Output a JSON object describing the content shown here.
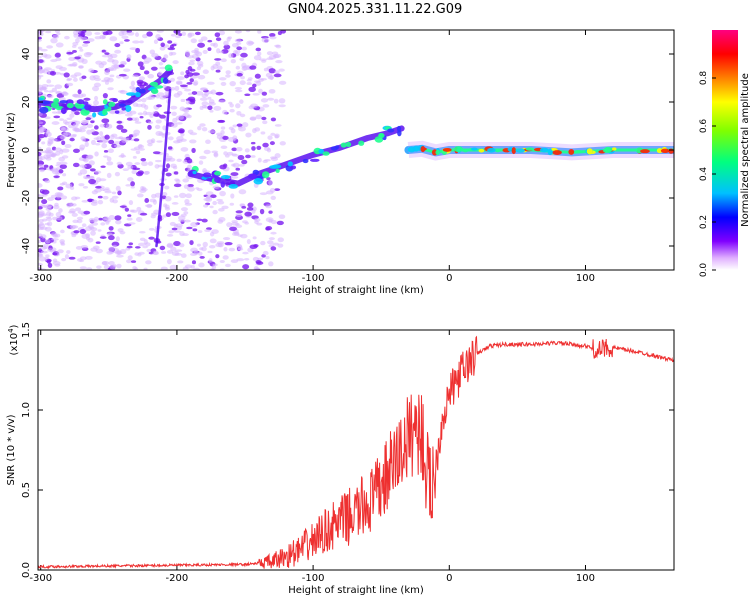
{
  "title": "GN04.2025.331.11.22.G09",
  "chart_data": [
    {
      "type": "heatmap",
      "xlabel": "Height of straight line (km)",
      "ylabel": "Frequency (Hz)",
      "xlim": [
        -302,
        165
      ],
      "ylim": [
        -50,
        50
      ],
      "x_ticks": [
        -300,
        -200,
        -100,
        0,
        100
      ],
      "y_ticks": [
        -40,
        -20,
        0,
        20,
        40
      ],
      "colorbar": {
        "label": "Normalized spectral amplitude",
        "range": [
          0,
          1
        ],
        "ticks": [
          "0.0",
          "0.2",
          "0.4",
          "0.6",
          "0.8"
        ],
        "colors": [
          "#ffffff",
          "#e0b0ff",
          "#8000ff",
          "#0000ff",
          "#00c0ff",
          "#00ff80",
          "#80ff00",
          "#ffff00",
          "#ff8000",
          "#ff0000",
          "#ff0080"
        ]
      },
      "tracks": [
        {
          "x": [
            -302,
            -280,
            -260,
            -245,
            -235,
            -225,
            -212,
            -205
          ],
          "y": [
            20,
            18,
            17,
            18,
            20,
            24,
            29,
            33
          ]
        },
        {
          "x": [
            -215,
            -210,
            -205
          ],
          "y": [
            -40,
            -10,
            25
          ]
        },
        {
          "x": [
            -190,
            -175,
            -155,
            -140,
            -120,
            -100,
            -80,
            -60,
            -45,
            -35
          ],
          "y": [
            -10,
            -12,
            -14,
            -10,
            -6,
            -2,
            1,
            5,
            7,
            9
          ]
        },
        {
          "x": [
            -30,
            -20,
            -10,
            0,
            30,
            60,
            90,
            120,
            165
          ],
          "y": [
            0,
            0.5,
            -1,
            0,
            0,
            0,
            -1,
            0,
            0
          ]
        }
      ]
    },
    {
      "type": "line",
      "xlabel": "Height of straight line (km)",
      "ylabel": "SNR (10 * v/v)",
      "y_multiplier": "(x10",
      "y_multiplier_exp": "4",
      "xlim": [
        -302,
        165
      ],
      "ylim": [
        0,
        15000
      ],
      "x_ticks": [
        -300,
        -200,
        -100,
        0,
        100
      ],
      "y_ticks": [
        "0.0",
        "0.5",
        "1.0",
        "1.5"
      ],
      "color": "#ee3030",
      "series": [
        {
          "x": [
            -302,
            -200,
            -150,
            -130,
            -110,
            -90,
            -70,
            -55,
            -45,
            -35,
            -25,
            -20,
            -15,
            -10,
            -5,
            0,
            10,
            20,
            30,
            40,
            60,
            80,
            100,
            110,
            115,
            120,
            140,
            165
          ],
          "y": [
            200,
            300,
            350,
            500,
            1200,
            2500,
            3500,
            4500,
            6000,
            7500,
            9000,
            8500,
            5000,
            6500,
            9500,
            11000,
            12500,
            13500,
            14000,
            14100,
            14100,
            14200,
            14000,
            13700,
            13900,
            13900,
            13600,
            13100
          ]
        }
      ]
    }
  ]
}
